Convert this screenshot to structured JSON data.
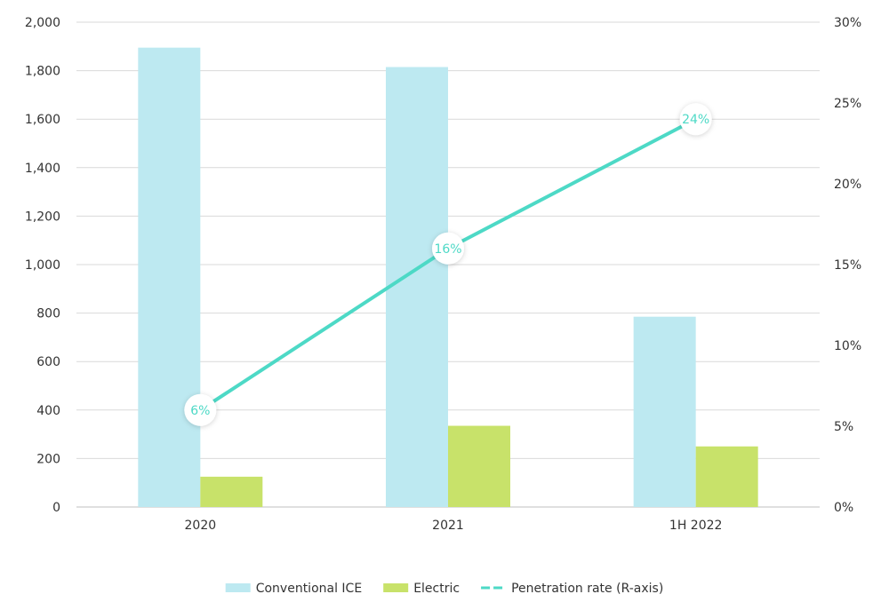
{
  "chart_data": {
    "type": "bar",
    "categories": [
      "2020",
      "2021",
      "1H 2022"
    ],
    "series": [
      {
        "name": "Conventional ICE",
        "kind": "bar",
        "axis": "left",
        "color": "#bde9f1",
        "values": [
          1895,
          1815,
          785
        ]
      },
      {
        "name": "Electric",
        "kind": "bar",
        "axis": "left",
        "color": "#c8e26a",
        "values": [
          125,
          335,
          250
        ]
      },
      {
        "name": "Penetration rate (R-axis)",
        "kind": "line",
        "axis": "right",
        "color": "#4dd9c6",
        "values": [
          6,
          16,
          24
        ],
        "labels": [
          "6%",
          "16%",
          "24%"
        ]
      }
    ],
    "y_left": {
      "min": 0,
      "max": 2000,
      "ticks": [
        "0",
        "200",
        "400",
        "600",
        "800",
        "1,000",
        "1,200",
        "1,400",
        "1,600",
        "1,800",
        "2,000"
      ]
    },
    "y_right": {
      "min": 0,
      "max": 30,
      "ticks": [
        "0%",
        "5%",
        "10%",
        "15%",
        "20%",
        "25%",
        "30%"
      ]
    },
    "grid": true,
    "legend_position": "bottom"
  }
}
